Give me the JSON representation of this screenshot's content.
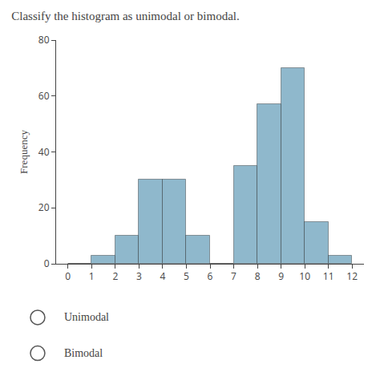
{
  "chart_data": {
    "type": "histogram",
    "title": "Classify the histogram as unimodal or bimodal.",
    "ylabel": "Frequency",
    "bins": [
      0,
      1,
      2,
      3,
      4,
      5,
      6,
      7,
      8,
      9,
      10,
      11,
      12
    ],
    "values": [
      0,
      3,
      10,
      30,
      30,
      10,
      0,
      35,
      57,
      70,
      15,
      3
    ],
    "color": "#8fb8cc",
    "xlim": [
      -0.5,
      12.5
    ],
    "xticks": [
      0,
      1,
      2,
      3,
      4,
      5,
      6,
      7,
      8,
      9,
      10,
      11,
      12
    ],
    "ylim": [
      0,
      80
    ],
    "yticks": [
      0,
      20,
      40,
      60,
      80
    ],
    "grid": false,
    "annotations": [
      "Unimodal",
      "Bimodal"
    ]
  }
}
